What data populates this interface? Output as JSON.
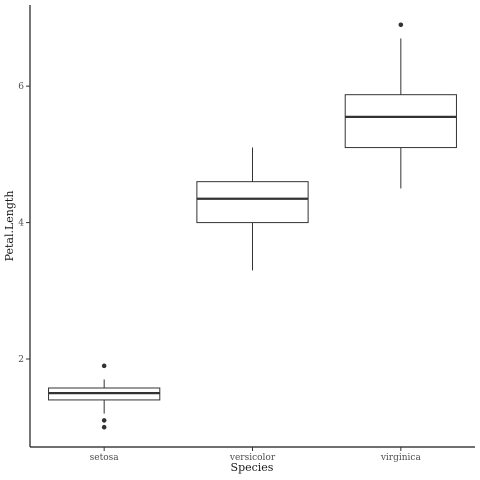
{
  "chart_data": {
    "type": "boxplot",
    "title": "",
    "xlabel": "Species",
    "ylabel": "Petal.Length",
    "ylim": [
      0.71,
      7.19
    ],
    "yticks": [
      2,
      4,
      6
    ],
    "grid": false,
    "categories": [
      "setosa",
      "versicolor",
      "virginica"
    ],
    "boxes": [
      {
        "category": "setosa",
        "lower_whisker": 1.2,
        "q1": 1.4,
        "median": 1.5,
        "q3": 1.575,
        "upper_whisker": 1.7,
        "outliers": [
          1.0,
          1.1,
          1.9
        ]
      },
      {
        "category": "versicolor",
        "lower_whisker": 3.3,
        "q1": 4.0,
        "median": 4.35,
        "q3": 4.6,
        "upper_whisker": 5.1,
        "outliers": []
      },
      {
        "category": "virginica",
        "lower_whisker": 4.5,
        "q1": 5.1,
        "median": 5.55,
        "q3": 5.875,
        "upper_whisker": 6.7,
        "outliers": [
          6.9
        ]
      }
    ]
  }
}
